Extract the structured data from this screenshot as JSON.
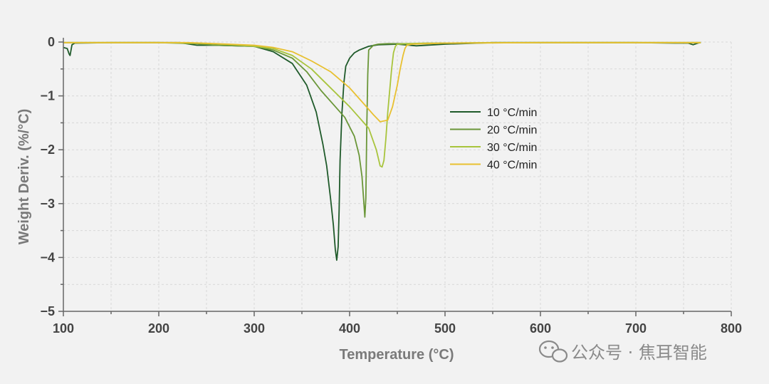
{
  "chart_data": {
    "type": "line",
    "xlabel": "Temperature (°C)",
    "ylabel": "Weight Deriv. (%/°C)",
    "xlim": [
      100,
      800
    ],
    "ylim": [
      -5,
      0
    ],
    "xticks": [
      "100",
      "200",
      "300",
      "400",
      "500",
      "600",
      "700",
      "800"
    ],
    "yticks": [
      "0",
      "−1",
      "−2",
      "−3",
      "−4",
      "−5"
    ],
    "grid": true,
    "legend": "center-right",
    "series": [
      {
        "name": "10 °C/min",
        "color": "#1f5a2a",
        "x": [
          100,
          104,
          106,
          107,
          109,
          112,
          150,
          200,
          222,
          240,
          260,
          300,
          320,
          340,
          355,
          365,
          372,
          376,
          380,
          383,
          385,
          386.5,
          388,
          389,
          390,
          392,
          394,
          396,
          400,
          405,
          410,
          420,
          430,
          450,
          470,
          500,
          550,
          600,
          650,
          700,
          740,
          755,
          760,
          765,
          768
        ],
        "y": [
          -0.1,
          -0.12,
          -0.22,
          -0.25,
          -0.05,
          -0.02,
          -0.01,
          -0.01,
          -0.01,
          -0.06,
          -0.06,
          -0.08,
          -0.18,
          -0.4,
          -0.8,
          -1.3,
          -1.9,
          -2.3,
          -2.9,
          -3.4,
          -3.85,
          -4.05,
          -3.8,
          -3.1,
          -2.2,
          -1.3,
          -0.75,
          -0.45,
          -0.3,
          -0.2,
          -0.15,
          -0.08,
          -0.05,
          -0.04,
          -0.07,
          -0.04,
          -0.01,
          -0.01,
          -0.01,
          -0.01,
          -0.02,
          -0.02,
          -0.05,
          -0.02,
          -0.01
        ]
      },
      {
        "name": "20 °C/min",
        "color": "#6a9638",
        "x": [
          100,
          150,
          200,
          240,
          260,
          300,
          320,
          340,
          355,
          370,
          385,
          395,
          405,
          410,
          413,
          415,
          416,
          417,
          418,
          419,
          420,
          425,
          430,
          440,
          460,
          480,
          500,
          550,
          600,
          700,
          768
        ],
        "y": [
          -0.01,
          -0.01,
          -0.01,
          -0.03,
          -0.06,
          -0.08,
          -0.15,
          -0.3,
          -0.55,
          -0.9,
          -1.2,
          -1.4,
          -1.75,
          -2.1,
          -2.5,
          -3.0,
          -3.25,
          -2.9,
          -1.6,
          -0.6,
          -0.15,
          -0.06,
          -0.04,
          -0.03,
          -0.03,
          -0.03,
          -0.02,
          -0.01,
          -0.01,
          -0.01,
          -0.01
        ]
      },
      {
        "name": "30 °C/min",
        "color": "#a8c43c",
        "x": [
          100,
          200,
          240,
          280,
          300,
          320,
          340,
          360,
          380,
          400,
          410,
          420,
          428,
          432,
          434,
          436,
          438,
          440,
          442,
          444,
          446,
          448,
          450,
          460,
          480,
          500,
          600,
          700,
          768
        ],
        "y": [
          -0.01,
          -0.01,
          -0.02,
          -0.05,
          -0.08,
          -0.12,
          -0.25,
          -0.5,
          -0.85,
          -1.2,
          -1.4,
          -1.6,
          -2.0,
          -2.3,
          -2.32,
          -2.2,
          -1.8,
          -1.3,
          -0.9,
          -0.5,
          -0.2,
          -0.08,
          -0.04,
          -0.03,
          -0.02,
          -0.02,
          -0.01,
          -0.01,
          -0.01
        ]
      },
      {
        "name": "40 °C/min",
        "color": "#e8c030",
        "x": [
          100,
          200,
          230,
          260,
          300,
          320,
          340,
          360,
          380,
          400,
          415,
          425,
          432,
          440,
          445,
          450,
          453,
          456,
          458,
          460,
          465,
          480,
          500,
          600,
          700,
          768
        ],
        "y": [
          -0.01,
          -0.01,
          -0.01,
          -0.03,
          -0.06,
          -0.1,
          -0.18,
          -0.35,
          -0.55,
          -0.85,
          -1.15,
          -1.35,
          -1.48,
          -1.45,
          -1.2,
          -0.8,
          -0.5,
          -0.25,
          -0.12,
          -0.06,
          -0.04,
          -0.03,
          -0.02,
          -0.01,
          -0.01,
          -0.01
        ]
      }
    ]
  },
  "watermark": {
    "icon": "wechat-icon",
    "text": "公众号 · 焦耳智能"
  }
}
